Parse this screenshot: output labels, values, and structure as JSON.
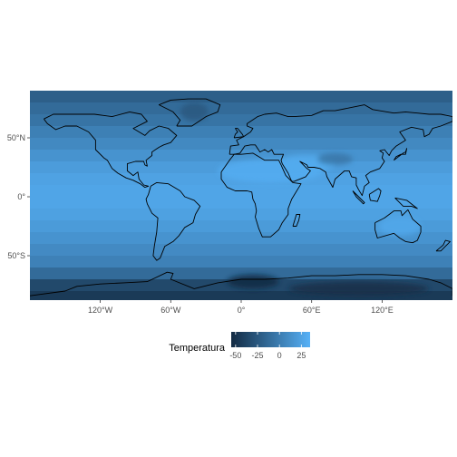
{
  "chart_data": {
    "type": "heatmap",
    "map_projection": "equirectangular",
    "grid": false,
    "x_range": [
      -180,
      180
    ],
    "y_range": [
      -90,
      90
    ],
    "x_ticks": [
      {
        "value": -120,
        "label": "120°W"
      },
      {
        "value": -60,
        "label": "60°W"
      },
      {
        "value": 0,
        "label": "0°"
      },
      {
        "value": 60,
        "label": "60°E"
      },
      {
        "value": 120,
        "label": "120°E"
      }
    ],
    "y_ticks": [
      {
        "value": 50,
        "label": "50°N"
      },
      {
        "value": 0,
        "label": "0°"
      },
      {
        "value": -50,
        "label": "50°S"
      }
    ],
    "legend": {
      "title": "Temperatura",
      "placement": "bottom",
      "range": [
        -55,
        35
      ],
      "ticks": [
        {
          "value": -50,
          "label": "-50"
        },
        {
          "value": -25,
          "label": "-25"
        },
        {
          "value": 0,
          "label": "0"
        },
        {
          "value": 25,
          "label": "25"
        }
      ],
      "color_low": "#132b43",
      "color_high": "#56b1f7"
    },
    "temperature_bands": [
      {
        "lat_from": 90,
        "lat_to": 80,
        "value": -20
      },
      {
        "lat_from": 80,
        "lat_to": 70,
        "value": -12
      },
      {
        "lat_from": 70,
        "lat_to": 60,
        "value": -6
      },
      {
        "lat_from": 60,
        "lat_to": 50,
        "value": 2
      },
      {
        "lat_from": 50,
        "lat_to": 40,
        "value": 8
      },
      {
        "lat_from": 40,
        "lat_to": 30,
        "value": 15
      },
      {
        "lat_from": 30,
        "lat_to": 20,
        "value": 21
      },
      {
        "lat_from": 20,
        "lat_to": 10,
        "value": 25
      },
      {
        "lat_from": 10,
        "lat_to": -10,
        "value": 27
      },
      {
        "lat_from": -10,
        "lat_to": -20,
        "value": 24
      },
      {
        "lat_from": -20,
        "lat_to": -30,
        "value": 20
      },
      {
        "lat_from": -30,
        "lat_to": -40,
        "value": 15
      },
      {
        "lat_from": -40,
        "lat_to": -50,
        "value": 9
      },
      {
        "lat_from": -50,
        "lat_to": -60,
        "value": 3
      },
      {
        "lat_from": -60,
        "lat_to": -70,
        "value": -12
      },
      {
        "lat_from": -70,
        "lat_to": -80,
        "value": -35
      },
      {
        "lat_from": -80,
        "lat_to": -90,
        "value": -45
      }
    ],
    "hot_spots": [
      {
        "lon": 25,
        "lat": 22,
        "rx": 45,
        "ry": 10,
        "value": 32
      },
      {
        "lon": 55,
        "lat": 28,
        "rx": 25,
        "ry": 8,
        "value": 31
      },
      {
        "lon": 135,
        "lat": -25,
        "rx": 18,
        "ry": 8,
        "value": 29
      }
    ],
    "cold_spots": [
      {
        "lon": 80,
        "lat": 32,
        "rx": 15,
        "ry": 5,
        "value": -5
      },
      {
        "lon": -40,
        "lat": 72,
        "rx": 12,
        "ry": 8,
        "value": -25
      },
      {
        "lon": 10,
        "lat": -72,
        "rx": 22,
        "ry": 6,
        "value": -55
      },
      {
        "lon": 100,
        "lat": -78,
        "rx": 60,
        "ry": 6,
        "value": -52
      }
    ],
    "coastlines": [
      [
        [
          -168,
          66
        ],
        [
          -160,
          70
        ],
        [
          -140,
          70
        ],
        [
          -125,
          70
        ],
        [
          -110,
          68
        ],
        [
          -95,
          72
        ],
        [
          -85,
          70
        ],
        [
          -80,
          64
        ],
        [
          -92,
          58
        ],
        [
          -82,
          52
        ],
        [
          -78,
          56
        ],
        [
          -70,
          60
        ],
        [
          -62,
          58
        ],
        [
          -55,
          52
        ],
        [
          -60,
          46
        ],
        [
          -66,
          44
        ],
        [
          -70,
          42
        ],
        [
          -76,
          38
        ],
        [
          -76,
          35
        ],
        [
          -81,
          31
        ],
        [
          -80,
          26
        ],
        [
          -82,
          27
        ],
        [
          -83,
          30
        ],
        [
          -90,
          30
        ],
        [
          -97,
          28
        ],
        [
          -97,
          22
        ],
        [
          -92,
          18
        ],
        [
          -88,
          21
        ],
        [
          -87,
          15
        ],
        [
          -83,
          10
        ],
        [
          -79,
          9
        ],
        [
          -82,
          8
        ],
        [
          -86,
          11
        ],
        [
          -92,
          14
        ],
        [
          -98,
          16
        ],
        [
          -105,
          20
        ],
        [
          -110,
          24
        ],
        [
          -114,
          31
        ],
        [
          -117,
          33
        ],
        [
          -124,
          40
        ],
        [
          -124,
          48
        ],
        [
          -130,
          55
        ],
        [
          -140,
          60
        ],
        [
          -150,
          60
        ],
        [
          -158,
          57
        ],
        [
          -165,
          62
        ],
        [
          -168,
          66
        ]
      ],
      [
        [
          -77,
          9
        ],
        [
          -72,
          12
        ],
        [
          -62,
          11
        ],
        [
          -52,
          5
        ],
        [
          -48,
          0
        ],
        [
          -40,
          -3
        ],
        [
          -35,
          -8
        ],
        [
          -39,
          -15
        ],
        [
          -41,
          -22
        ],
        [
          -48,
          -26
        ],
        [
          -53,
          -33
        ],
        [
          -58,
          -38
        ],
        [
          -65,
          -42
        ],
        [
          -67,
          -47
        ],
        [
          -69,
          -52
        ],
        [
          -72,
          -54
        ],
        [
          -75,
          -50
        ],
        [
          -74,
          -42
        ],
        [
          -72,
          -30
        ],
        [
          -71,
          -18
        ],
        [
          -76,
          -14
        ],
        [
          -80,
          -6
        ],
        [
          -81,
          -2
        ],
        [
          -79,
          2
        ],
        [
          -77,
          9
        ]
      ],
      [
        [
          -17,
          21
        ],
        [
          -17,
          15
        ],
        [
          -12,
          8
        ],
        [
          -5,
          5
        ],
        [
          5,
          5
        ],
        [
          9,
          4
        ],
        [
          10,
          -2
        ],
        [
          12,
          -6
        ],
        [
          13,
          -12
        ],
        [
          12,
          -17
        ],
        [
          15,
          -27
        ],
        [
          18,
          -34
        ],
        [
          25,
          -34
        ],
        [
          32,
          -28
        ],
        [
          35,
          -22
        ],
        [
          40,
          -15
        ],
        [
          40,
          -10
        ],
        [
          43,
          -2
        ],
        [
          51,
          11
        ],
        [
          44,
          12
        ],
        [
          38,
          18
        ],
        [
          34,
          27
        ],
        [
          32,
          31
        ],
        [
          20,
          31
        ],
        [
          10,
          37
        ],
        [
          0,
          36
        ],
        [
          -6,
          36
        ],
        [
          -10,
          31
        ],
        [
          -17,
          21
        ]
      ],
      [
        [
          -10,
          36
        ],
        [
          -9,
          43
        ],
        [
          -2,
          44
        ],
        [
          -4,
          48
        ],
        [
          2,
          51
        ],
        [
          5,
          53
        ],
        [
          8,
          55
        ],
        [
          10,
          58
        ],
        [
          5,
          60
        ],
        [
          5,
          62
        ],
        [
          14,
          68
        ],
        [
          20,
          70
        ],
        [
          30,
          71
        ],
        [
          40,
          68
        ],
        [
          45,
          68
        ],
        [
          60,
          69
        ],
        [
          70,
          73
        ],
        [
          80,
          73
        ],
        [
          95,
          76
        ],
        [
          105,
          78
        ],
        [
          112,
          74
        ],
        [
          130,
          71
        ],
        [
          140,
          72
        ],
        [
          150,
          71
        ],
        [
          160,
          70
        ],
        [
          170,
          70
        ],
        [
          180,
          68
        ],
        [
          180,
          64
        ],
        [
          170,
          60
        ],
        [
          163,
          58
        ],
        [
          160,
          53
        ],
        [
          156,
          51
        ],
        [
          155,
          57
        ],
        [
          145,
          59
        ],
        [
          135,
          55
        ],
        [
          140,
          48
        ],
        [
          132,
          43
        ],
        [
          128,
          39
        ],
        [
          126,
          35
        ],
        [
          122,
          40
        ],
        [
          118,
          39
        ],
        [
          121,
          37
        ],
        [
          120,
          33
        ],
        [
          122,
          30
        ],
        [
          118,
          24
        ],
        [
          110,
          21
        ],
        [
          106,
          18
        ],
        [
          109,
          12
        ],
        [
          105,
          9
        ],
        [
          103,
          1
        ],
        [
          100,
          6
        ],
        [
          98,
          10
        ],
        [
          98,
          16
        ],
        [
          94,
          17
        ],
        [
          92,
          22
        ],
        [
          88,
          22
        ],
        [
          80,
          15
        ],
        [
          78,
          8
        ],
        [
          73,
          17
        ],
        [
          72,
          21
        ],
        [
          67,
          24
        ],
        [
          62,
          25
        ],
        [
          57,
          25
        ],
        [
          56,
          27
        ],
        [
          50,
          30
        ],
        [
          56,
          24
        ],
        [
          59,
          22
        ],
        [
          55,
          17
        ],
        [
          45,
          13
        ],
        [
          43,
          13
        ],
        [
          40,
          20
        ],
        [
          35,
          28
        ],
        [
          34,
          31
        ],
        [
          36,
          36
        ],
        [
          28,
          36
        ],
        [
          26,
          40
        ],
        [
          23,
          38
        ],
        [
          20,
          40
        ],
        [
          16,
          38
        ],
        [
          12,
          44
        ],
        [
          8,
          44
        ],
        [
          3,
          43
        ],
        [
          -1,
          37
        ],
        [
          -6,
          36
        ],
        [
          -10,
          36
        ]
      ],
      [
        [
          114,
          -22
        ],
        [
          122,
          -18
        ],
        [
          130,
          -12
        ],
        [
          136,
          -12
        ],
        [
          137,
          -16
        ],
        [
          142,
          -11
        ],
        [
          146,
          -19
        ],
        [
          153,
          -25
        ],
        [
          153,
          -30
        ],
        [
          150,
          -37
        ],
        [
          146,
          -39
        ],
        [
          140,
          -38
        ],
        [
          135,
          -35
        ],
        [
          130,
          -31
        ],
        [
          116,
          -35
        ],
        [
          114,
          -28
        ],
        [
          114,
          -22
        ]
      ],
      [
        [
          -55,
          60
        ],
        [
          -42,
          60
        ],
        [
          -30,
          68
        ],
        [
          -20,
          72
        ],
        [
          -18,
          78
        ],
        [
          -30,
          83
        ],
        [
          -45,
          83
        ],
        [
          -60,
          82
        ],
        [
          -70,
          78
        ],
        [
          -58,
          72
        ],
        [
          -52,
          65
        ],
        [
          -55,
          60
        ]
      ],
      [
        [
          -6,
          50
        ],
        [
          2,
          51
        ],
        [
          1,
          53
        ],
        [
          -3,
          58
        ],
        [
          -5,
          58
        ],
        [
          -3,
          55
        ],
        [
          -5,
          53
        ],
        [
          -6,
          50
        ]
      ],
      [
        [
          -180,
          -84
        ],
        [
          -150,
          -80
        ],
        [
          -140,
          -76
        ],
        [
          -120,
          -74
        ],
        [
          -100,
          -73
        ],
        [
          -80,
          -72
        ],
        [
          -63,
          -64
        ],
        [
          -58,
          -65
        ],
        [
          -60,
          -70
        ],
        [
          -40,
          -78
        ],
        [
          -20,
          -73
        ],
        [
          0,
          -70
        ],
        [
          20,
          -70
        ],
        [
          40,
          -69
        ],
        [
          60,
          -67
        ],
        [
          80,
          -67
        ],
        [
          100,
          -66
        ],
        [
          120,
          -66
        ],
        [
          140,
          -67
        ],
        [
          160,
          -70
        ],
        [
          170,
          -73
        ],
        [
          180,
          -78
        ],
        [
          180,
          -84
        ]
      ],
      [
        [
          130,
          31
        ],
        [
          132,
          34
        ],
        [
          136,
          36
        ],
        [
          140,
          36
        ],
        [
          141,
          41
        ],
        [
          140,
          38
        ],
        [
          138,
          37
        ],
        [
          134,
          34
        ],
        [
          130,
          31
        ]
      ],
      [
        [
          95,
          5
        ],
        [
          100,
          0
        ],
        [
          105,
          -5
        ],
        [
          104,
          -6
        ],
        [
          98,
          0
        ],
        [
          95,
          5
        ]
      ],
      [
        [
          109,
          2
        ],
        [
          117,
          7
        ],
        [
          119,
          5
        ],
        [
          118,
          1
        ],
        [
          116,
          -4
        ],
        [
          110,
          -3
        ],
        [
          109,
          2
        ]
      ],
      [
        [
          131,
          -1
        ],
        [
          141,
          -3
        ],
        [
          150,
          -10
        ],
        [
          145,
          -8
        ],
        [
          138,
          -8
        ],
        [
          131,
          -1
        ]
      ],
      [
        [
          166,
          -46
        ],
        [
          172,
          -41
        ],
        [
          174,
          -37
        ],
        [
          178,
          -38
        ],
        [
          174,
          -42
        ],
        [
          170,
          -46
        ],
        [
          166,
          -46
        ]
      ],
      [
        [
          44,
          -25
        ],
        [
          47,
          -15
        ],
        [
          50,
          -15
        ],
        [
          49,
          -20
        ],
        [
          47,
          -25
        ],
        [
          44,
          -25
        ]
      ]
    ]
  }
}
